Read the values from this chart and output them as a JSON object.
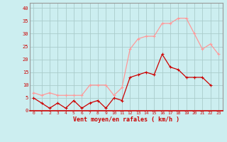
{
  "x": [
    0,
    1,
    2,
    3,
    4,
    5,
    6,
    7,
    8,
    9,
    10,
    11,
    12,
    13,
    14,
    15,
    16,
    17,
    18,
    19,
    20,
    21,
    22,
    23
  ],
  "vent_moyen": [
    5,
    3,
    1,
    3,
    1,
    4,
    1,
    3,
    4,
    1,
    5,
    4,
    13,
    14,
    15,
    14,
    22,
    17,
    16,
    13,
    13,
    13,
    10,
    null
  ],
  "rafales": [
    7,
    6,
    7,
    6,
    6,
    6,
    6,
    10,
    10,
    10,
    6,
    9,
    24,
    28,
    29,
    29,
    34,
    34,
    36,
    36,
    30,
    24,
    26,
    22
  ],
  "bg_color": "#cceef0",
  "grid_color": "#aacccc",
  "line_moyen_color": "#cc0000",
  "line_rafales_color": "#ff9999",
  "axis_color": "#cc0000",
  "tick_color": "#cc0000",
  "xlabel": "Vent moyen/en rafales ( km/h )",
  "ylim": [
    0,
    42
  ],
  "yticks": [
    0,
    5,
    10,
    15,
    20,
    25,
    30,
    35,
    40
  ],
  "xticks": [
    0,
    1,
    2,
    3,
    4,
    5,
    6,
    7,
    8,
    9,
    10,
    11,
    12,
    13,
    14,
    15,
    16,
    17,
    18,
    19,
    20,
    21,
    22,
    23
  ],
  "marker_size": 2.5,
  "line_width": 0.9
}
